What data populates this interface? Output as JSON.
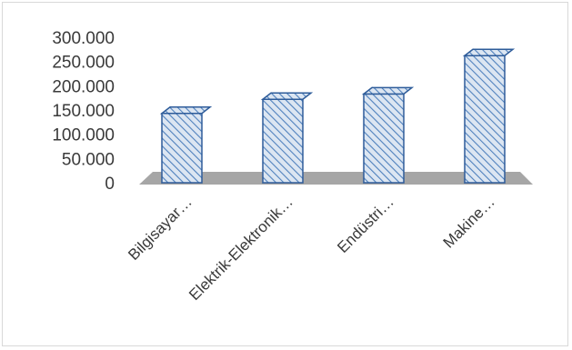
{
  "chart_data": {
    "type": "bar",
    "style": "3d-column-hatched",
    "categories": [
      "Bilgisayar…",
      "Elektrik-Elektronik…",
      "Endüstri…",
      "Makine…"
    ],
    "values": [
      143000,
      172000,
      183000,
      262000
    ],
    "ylim": [
      0,
      300000
    ],
    "yticks": [
      0,
      50000,
      100000,
      150000,
      200000,
      250000,
      300000
    ],
    "ytick_labels": [
      "0",
      "50.000",
      "100.000",
      "150.000",
      "200.000",
      "250.000",
      "300.000"
    ],
    "title": "",
    "xlabel": "",
    "ylabel": "",
    "grid": false,
    "legend": "none"
  },
  "colors": {
    "bar_fill": "#dce6f2",
    "bar_hatch": "#4f81bd",
    "bar_edge": "#2e5c9a",
    "bar_side": "#1f3f6e",
    "floor": "#a6a6a6",
    "text": "#3a3a3a",
    "frame": "#d9d9d9"
  }
}
